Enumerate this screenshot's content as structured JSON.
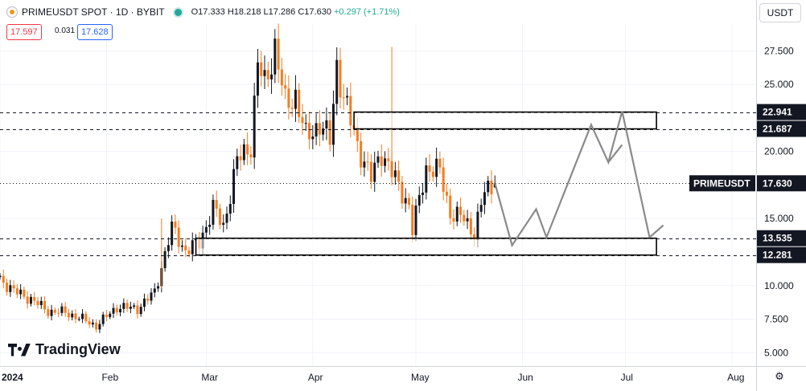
{
  "header": {
    "symbol": "PRIMEUSDT SPOT · 1D · BYBIT",
    "o": "O17.333",
    "h": "H18.218",
    "l": "L17.286",
    "c": "C17.630",
    "change": "+0.297 (+1.71%)"
  },
  "quote": {
    "bid": "17.597",
    "spread": "0.031",
    "ask": "17.628"
  },
  "currency": "USDT",
  "brand": "TradingView",
  "colors": {
    "up": "#26a69a",
    "up_candle": "#131722",
    "down": "#f57c1f",
    "price_label": "#131722"
  },
  "icons": {
    "settings": "gear-icon",
    "logo": "tradingview-logo-icon"
  },
  "chart_data": {
    "type": "candlestick",
    "title": "",
    "xlabel": "",
    "ylabel": "",
    "yaxis": {
      "range": [
        4.0,
        29.5
      ],
      "ticks": [
        {
          "v": 27.5,
          "label": "27.500"
        },
        {
          "v": 25.0,
          "label": "25.000"
        },
        {
          "v": 20.0,
          "label": "20.000"
        },
        {
          "v": 15.0,
          "label": "15.000"
        },
        {
          "v": 10.0,
          "label": "10.000"
        },
        {
          "v": 7.5,
          "label": "7.500"
        },
        {
          "v": 5.0,
          "label": "5.000"
        }
      ]
    },
    "xaxis": {
      "range": [
        "2024-01-01",
        "2024-08-08"
      ],
      "ticks": [
        {
          "date": "2024-01-01",
          "label": "2024"
        },
        {
          "date": "2024-02-01",
          "label": "Feb"
        },
        {
          "date": "2024-03-01",
          "label": "Mar"
        },
        {
          "date": "2024-04-01",
          "label": "Apr"
        },
        {
          "date": "2024-05-01",
          "label": "May"
        },
        {
          "date": "2024-06-01",
          "label": "Jun"
        },
        {
          "date": "2024-07-01",
          "label": "Jul"
        },
        {
          "date": "2024-08-01",
          "label": "Aug"
        }
      ]
    },
    "anchors": [
      {
        "date": "2024-01-01",
        "v": 10.5
      },
      {
        "date": "2024-01-05",
        "v": 9.6
      },
      {
        "date": "2024-01-10",
        "v": 9.0
      },
      {
        "date": "2024-01-15",
        "v": 8.1
      },
      {
        "date": "2024-01-20",
        "v": 8.0
      },
      {
        "date": "2024-01-25",
        "v": 7.5
      },
      {
        "date": "2024-01-29",
        "v": 7.0
      },
      {
        "date": "2024-02-04",
        "v": 8.4
      },
      {
        "date": "2024-02-10",
        "v": 8.3
      },
      {
        "date": "2024-02-15",
        "v": 9.5
      },
      {
        "date": "2024-02-20",
        "v": 14.3
      },
      {
        "date": "2024-02-24",
        "v": 12.6
      },
      {
        "date": "2024-02-28",
        "v": 13.2
      },
      {
        "date": "2024-03-03",
        "v": 15.8
      },
      {
        "date": "2024-03-06",
        "v": 14.4
      },
      {
        "date": "2024-03-10",
        "v": 19.3
      },
      {
        "date": "2024-03-14",
        "v": 20.5
      },
      {
        "date": "2024-03-16",
        "v": 26.5
      },
      {
        "date": "2024-03-18",
        "v": 25.0
      },
      {
        "date": "2024-03-21",
        "v": 27.8
      },
      {
        "date": "2024-03-24",
        "v": 23.5
      },
      {
        "date": "2024-03-27",
        "v": 24.2
      },
      {
        "date": "2024-03-30",
        "v": 21.0
      },
      {
        "date": "2024-04-03",
        "v": 22.1
      },
      {
        "date": "2024-04-06",
        "v": 20.8
      },
      {
        "date": "2024-04-08",
        "v": 26.5
      },
      {
        "date": "2024-04-10",
        "v": 24.0
      },
      {
        "date": "2024-04-14",
        "v": 20.5
      },
      {
        "date": "2024-04-18",
        "v": 18.0
      },
      {
        "date": "2024-04-21",
        "v": 20.0
      },
      {
        "date": "2024-04-25",
        "v": 17.9
      },
      {
        "date": "2024-04-29",
        "v": 16.0
      },
      {
        "date": "2024-04-30",
        "v": 14.1
      },
      {
        "date": "2024-05-04",
        "v": 18.8
      },
      {
        "date": "2024-05-08",
        "v": 18.5
      },
      {
        "date": "2024-05-11",
        "v": 15.4
      },
      {
        "date": "2024-05-15",
        "v": 15.0
      },
      {
        "date": "2024-05-18",
        "v": 13.9
      },
      {
        "date": "2024-05-21",
        "v": 17.0
      },
      {
        "date": "2024-05-24",
        "v": 17.63
      }
    ],
    "spikes": [
      {
        "date": "2024-02-17",
        "high": 15.0,
        "low": 9.8
      },
      {
        "date": "2024-04-24",
        "high": 27.8,
        "low": 17.6
      }
    ],
    "last_price": {
      "value": 17.63,
      "label": "17.630",
      "name": "PRIMEUSDT"
    },
    "levels": [
      {
        "value": 22.941,
        "label": "22.941"
      },
      {
        "value": 21.687,
        "label": "21.687"
      },
      {
        "value": 13.535,
        "label": "13.535"
      },
      {
        "value": 12.281,
        "label": "12.281"
      }
    ],
    "zones": [
      {
        "start": "2024-04-13",
        "end": "2024-07-10",
        "top": 22.941,
        "bottom": 21.687
      },
      {
        "start": "2024-02-27",
        "end": "2024-07-10",
        "top": 13.535,
        "bottom": 12.281
      }
    ],
    "projection": {
      "path": [
        {
          "date": "2024-05-24",
          "v": 17.63
        },
        {
          "date": "2024-05-29",
          "v": 13.0
        },
        {
          "date": "2024-06-05",
          "v": 15.7
        },
        {
          "date": "2024-06-08",
          "v": 13.6
        },
        {
          "date": "2024-06-21",
          "v": 22.0
        },
        {
          "date": "2024-06-26",
          "v": 19.2
        },
        {
          "date": "2024-06-30",
          "v": 23.0
        },
        {
          "date": "2024-07-08",
          "v": 13.6
        }
      ],
      "arrow_a": {
        "from": {
          "date": "2024-06-30",
          "v": 20.5
        },
        "to": {
          "date": "2024-06-26",
          "v": 19.2
        }
      },
      "arrow_b": {
        "from": {
          "date": "2024-07-12",
          "v": 14.5
        },
        "to": {
          "date": "2024-07-08",
          "v": 13.6
        }
      },
      "color": "#8a8a8a"
    }
  }
}
